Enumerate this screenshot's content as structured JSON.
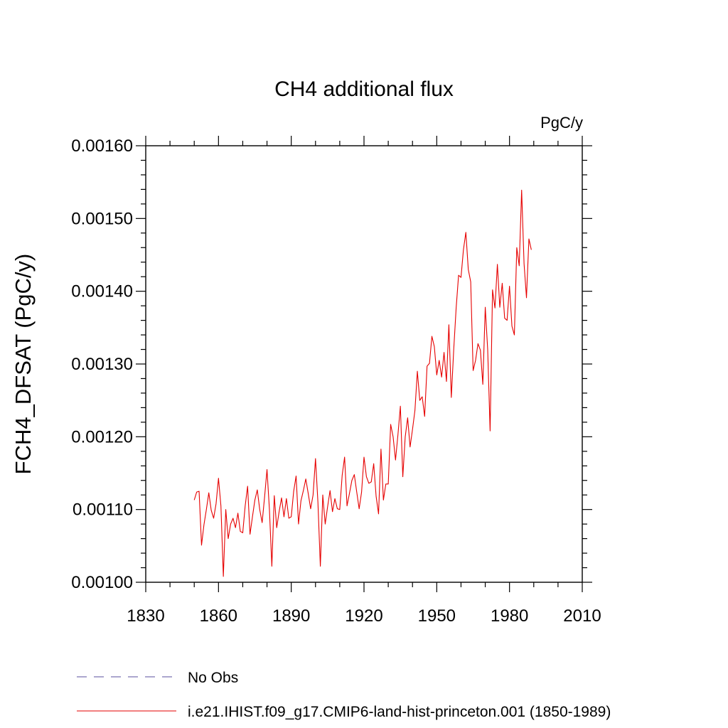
{
  "chart_data": {
    "type": "line",
    "title": "CH4 additional flux",
    "units": "PgC/y",
    "xlabel": "",
    "ylabel": "FCH4_DFSAT  (PgC/y)",
    "xlim": [
      1830,
      2010
    ],
    "ylim": [
      0.001,
      0.0016
    ],
    "xticks": [
      "1830",
      "1860",
      "1890",
      "1920",
      "1950",
      "1980",
      "2010"
    ],
    "yticks": [
      "0.00100",
      "0.00110",
      "0.00120",
      "0.00130",
      "0.00140",
      "0.00150",
      "0.00160"
    ],
    "grid": false,
    "legend_position": "bottom",
    "series": [
      {
        "name": "No Obs",
        "color": "#5a4f9c",
        "style": "dashed",
        "x": [],
        "y": []
      },
      {
        "name": "i.e21.IHIST.f09_g17.CMIP6-land-hist-princeton.001 (1850-1989)",
        "color": "#e60000",
        "style": "solid",
        "x": [
          1850,
          1851,
          1852,
          1853,
          1854,
          1855,
          1856,
          1857,
          1858,
          1859,
          1860,
          1861,
          1862,
          1863,
          1864,
          1865,
          1866,
          1867,
          1868,
          1869,
          1870,
          1871,
          1872,
          1873,
          1874,
          1875,
          1876,
          1877,
          1878,
          1879,
          1880,
          1881,
          1882,
          1883,
          1884,
          1885,
          1886,
          1887,
          1888,
          1889,
          1890,
          1891,
          1892,
          1893,
          1894,
          1895,
          1896,
          1897,
          1898,
          1899,
          1900,
          1901,
          1902,
          1903,
          1904,
          1905,
          1906,
          1907,
          1908,
          1909,
          1910,
          1911,
          1912,
          1913,
          1914,
          1915,
          1916,
          1917,
          1918,
          1919,
          1920,
          1921,
          1922,
          1923,
          1924,
          1925,
          1926,
          1927,
          1928,
          1929,
          1930,
          1931,
          1932,
          1933,
          1934,
          1935,
          1936,
          1937,
          1938,
          1939,
          1940,
          1941,
          1942,
          1943,
          1944,
          1945,
          1946,
          1947,
          1948,
          1949,
          1950,
          1951,
          1952,
          1953,
          1954,
          1955,
          1956,
          1957,
          1958,
          1959,
          1960,
          1961,
          1962,
          1963,
          1964,
          1965,
          1966,
          1967,
          1968,
          1969,
          1970,
          1971,
          1972,
          1973,
          1974,
          1975,
          1976,
          1977,
          1978,
          1979,
          1980,
          1981,
          1982,
          1983,
          1984,
          1985,
          1986,
          1987,
          1988,
          1989
        ],
        "y": [
          0.001113,
          0.001124,
          0.001125,
          0.001051,
          0.001079,
          0.0011,
          0.001123,
          0.001099,
          0.001088,
          0.001108,
          0.001143,
          0.001105,
          0.001008,
          0.0011,
          0.00106,
          0.00108,
          0.001088,
          0.001075,
          0.001095,
          0.00107,
          0.001068,
          0.001105,
          0.001132,
          0.001066,
          0.00109,
          0.001113,
          0.001127,
          0.0011,
          0.001082,
          0.001117,
          0.001155,
          0.0011,
          0.001022,
          0.001119,
          0.001075,
          0.001097,
          0.001116,
          0.00109,
          0.001115,
          0.001088,
          0.00109,
          0.001125,
          0.001146,
          0.00108,
          0.001112,
          0.001126,
          0.001142,
          0.001122,
          0.001101,
          0.00112,
          0.00117,
          0.00111,
          0.001022,
          0.00112,
          0.00108,
          0.001104,
          0.001126,
          0.001097,
          0.001115,
          0.001101,
          0.0011,
          0.001147,
          0.001172,
          0.001105,
          0.001122,
          0.00114,
          0.001148,
          0.001124,
          0.001101,
          0.001124,
          0.001172,
          0.001145,
          0.001136,
          0.001138,
          0.001163,
          0.001118,
          0.001094,
          0.001183,
          0.001113,
          0.001135,
          0.001135,
          0.001217,
          0.0012,
          0.001168,
          0.001203,
          0.001242,
          0.001145,
          0.0012,
          0.001226,
          0.001186,
          0.00121,
          0.001236,
          0.00129,
          0.00125,
          0.001255,
          0.001228,
          0.001297,
          0.001301,
          0.001338,
          0.001324,
          0.001285,
          0.001305,
          0.001282,
          0.001316,
          0.001276,
          0.001354,
          0.001254,
          0.00132,
          0.001377,
          0.001422,
          0.001419,
          0.001457,
          0.001481,
          0.00143,
          0.001413,
          0.001291,
          0.001305,
          0.001328,
          0.001319,
          0.001272,
          0.001378,
          0.00132,
          0.001208,
          0.001402,
          0.001377,
          0.001437,
          0.001378,
          0.001411,
          0.001363,
          0.00136,
          0.001407,
          0.001352,
          0.00134,
          0.00146,
          0.001435,
          0.001539,
          0.001438,
          0.001391,
          0.001472,
          0.001457
        ]
      }
    ]
  }
}
